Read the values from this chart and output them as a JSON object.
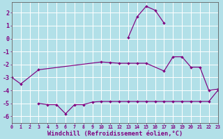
{
  "xlabel": "Windchill (Refroidissement éolien,°C)",
  "background_color": "#b2e0e8",
  "line_color": "#800080",
  "grid_color": "#ffffff",
  "s1": [
    [
      0,
      -3.0
    ],
    [
      1,
      -3.5
    ],
    [
      3,
      -2.4
    ],
    [
      10,
      -1.8
    ],
    [
      11,
      -1.85
    ],
    [
      12,
      -1.9
    ],
    [
      13,
      -1.9
    ],
    [
      14,
      -1.9
    ],
    [
      15,
      -1.9
    ],
    [
      17,
      -2.5
    ],
    [
      18,
      -1.4
    ],
    [
      19,
      -1.4
    ],
    [
      20,
      -2.2
    ],
    [
      21,
      -2.2
    ],
    [
      22,
      -4.0
    ],
    [
      23,
      -3.9
    ]
  ],
  "s2": [
    [
      3,
      -5.0
    ],
    [
      4,
      -5.1
    ],
    [
      5,
      -5.1
    ],
    [
      6,
      -5.8
    ],
    [
      7,
      -5.1
    ],
    [
      8,
      -5.1
    ],
    [
      9,
      -4.9
    ],
    [
      10,
      -4.85
    ],
    [
      11,
      -4.85
    ],
    [
      12,
      -4.85
    ],
    [
      13,
      -4.85
    ],
    [
      14,
      -4.85
    ],
    [
      15,
      -4.85
    ],
    [
      16,
      -4.85
    ],
    [
      17,
      -4.85
    ],
    [
      18,
      -4.85
    ],
    [
      19,
      -4.85
    ],
    [
      20,
      -4.85
    ],
    [
      21,
      -4.85
    ],
    [
      22,
      -4.85
    ],
    [
      23,
      -4.0
    ]
  ],
  "s3": [
    [
      13,
      0.1
    ],
    [
      14,
      1.7
    ],
    [
      15,
      2.5
    ],
    [
      16,
      2.2
    ],
    [
      17,
      1.2
    ]
  ],
  "ylim": [
    -6.5,
    2.8
  ],
  "yticks": [
    -6,
    -5,
    -4,
    -3,
    -2,
    -1,
    0,
    1,
    2
  ],
  "xlim": [
    0,
    23
  ]
}
